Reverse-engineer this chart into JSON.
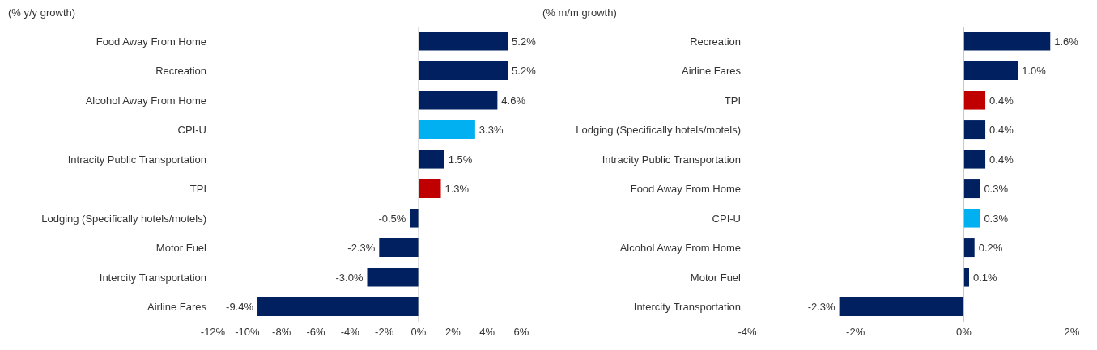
{
  "chart_data": [
    {
      "type": "bar",
      "orientation": "horizontal",
      "title": "(% y/y growth)",
      "categories": [
        "Food Away From Home",
        "Recreation",
        "Alcohol Away From Home",
        "CPI-U",
        "Intracity Public Transportation",
        "TPI",
        "Lodging (Specifically hotels/motels)",
        "Motor Fuel",
        "Intercity Transportation",
        "Airline Fares"
      ],
      "values": [
        5.2,
        5.2,
        4.6,
        3.3,
        1.5,
        1.3,
        -0.5,
        -2.3,
        -3.0,
        -9.4
      ],
      "value_labels": [
        "5.2%",
        "5.2%",
        "4.6%",
        "3.3%",
        "1.5%",
        "1.3%",
        "-0.5%",
        "-2.3%",
        "-3.0%",
        "-9.4%"
      ],
      "colors": [
        "#002060",
        "#002060",
        "#002060",
        "#00b0f0",
        "#002060",
        "#c00000",
        "#002060",
        "#002060",
        "#002060",
        "#002060"
      ],
      "xlim": [
        -12,
        6
      ],
      "xticks": [
        {
          "value": -12,
          "label": "-12%"
        },
        {
          "value": -10,
          "label": "-10%"
        },
        {
          "value": -8,
          "label": "-8%"
        },
        {
          "value": -6,
          "label": "-6%"
        },
        {
          "value": -4,
          "label": "-4%"
        },
        {
          "value": -2,
          "label": "-2%"
        },
        {
          "value": 0,
          "label": "0%"
        },
        {
          "value": 2,
          "label": "2%"
        },
        {
          "value": 4,
          "label": "4%"
        },
        {
          "value": 6,
          "label": "6%"
        }
      ],
      "ref_lines": [
        {
          "axis": "x",
          "value": 0,
          "color": "#bfbfbf"
        }
      ],
      "grid": false,
      "legend": false
    },
    {
      "type": "bar",
      "orientation": "horizontal",
      "title": "(% m/m growth)",
      "categories": [
        "Recreation",
        "Airline Fares",
        "TPI",
        "Lodging (Specifically hotels/motels)",
        "Intracity Public Transportation",
        "Food Away From Home",
        "CPI-U",
        "Alcohol Away From Home",
        "Motor Fuel",
        "Intercity Transportation"
      ],
      "values": [
        1.6,
        1.0,
        0.4,
        0.4,
        0.4,
        0.3,
        0.3,
        0.2,
        0.1,
        -2.3
      ],
      "value_labels": [
        "1.6%",
        "1.0%",
        "0.4%",
        "0.4%",
        "0.4%",
        "0.3%",
        "0.3%",
        "0.2%",
        "0.1%",
        "-2.3%"
      ],
      "colors": [
        "#002060",
        "#002060",
        "#c00000",
        "#002060",
        "#002060",
        "#002060",
        "#00b0f0",
        "#002060",
        "#002060",
        "#002060"
      ],
      "xlim": [
        -4,
        2
      ],
      "xticks": [
        {
          "value": -4,
          "label": "-4%"
        },
        {
          "value": -2,
          "label": "-2%"
        },
        {
          "value": 0,
          "label": "0%"
        },
        {
          "value": 2,
          "label": "2%"
        }
      ],
      "ref_lines": [
        {
          "axis": "x",
          "value": 0,
          "color": "#bfbfbf"
        }
      ],
      "grid": false,
      "legend": false
    }
  ]
}
